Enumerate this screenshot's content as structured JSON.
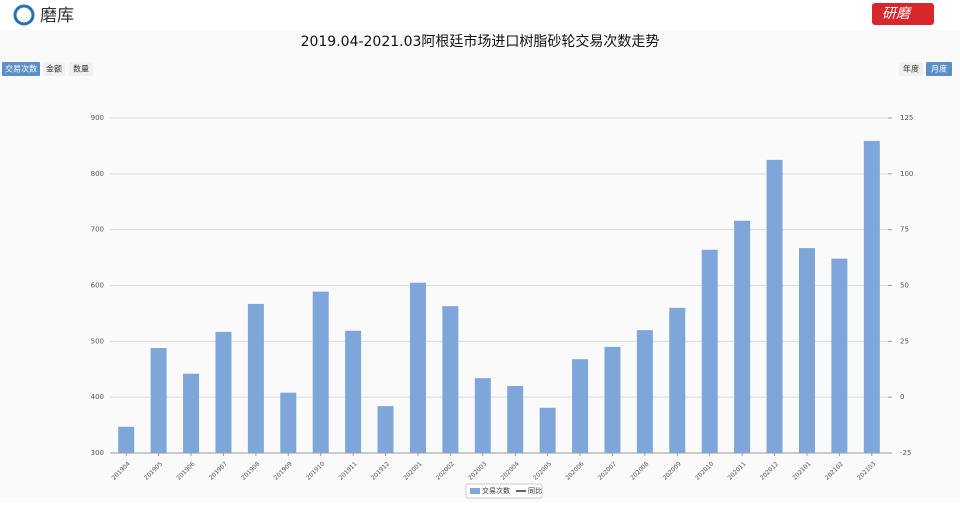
{
  "ui": {
    "logo": "磨库",
    "brand": "研磨",
    "tabs_left": [
      "交易次数",
      "金额",
      "数量"
    ],
    "tabs_right": [
      "年度",
      "月度"
    ]
  },
  "chart_data": {
    "type": "bar",
    "title": "2019.04-2021.03阿根廷市场进口树脂砂轮交易次数走势",
    "categories": [
      "201904",
      "201905",
      "201906",
      "201907",
      "201908",
      "201909",
      "201910",
      "201911",
      "201912",
      "202001",
      "202002",
      "202003",
      "202004",
      "202005",
      "202006",
      "202007",
      "202008",
      "202009",
      "202010",
      "202011",
      "202012",
      "202101",
      "202102",
      "202103"
    ],
    "series": [
      {
        "name": "交易次数",
        "color": "#7fa6d8",
        "values": [
          347,
          488,
          442,
          517,
          567,
          408,
          589,
          519,
          384,
          605,
          563,
          434,
          420,
          381,
          468,
          490,
          520,
          560,
          664,
          716,
          825,
          667,
          648,
          859
        ]
      },
      {
        "name": "同比",
        "color": "#333333",
        "axis": "y2",
        "values": [
          null,
          null,
          null,
          null,
          null,
          null,
          null,
          null,
          null,
          null,
          null,
          null,
          null,
          null,
          null,
          null,
          null,
          null,
          null,
          null,
          null,
          null,
          null,
          null
        ]
      }
    ],
    "ylim": [
      300,
      900
    ],
    "yticks": [
      300,
      400,
      500,
      600,
      700,
      800,
      900
    ],
    "y2lim": [
      -25,
      125
    ],
    "y2ticks": [
      -25,
      0,
      25,
      50,
      75,
      100,
      125
    ],
    "grid": true
  }
}
